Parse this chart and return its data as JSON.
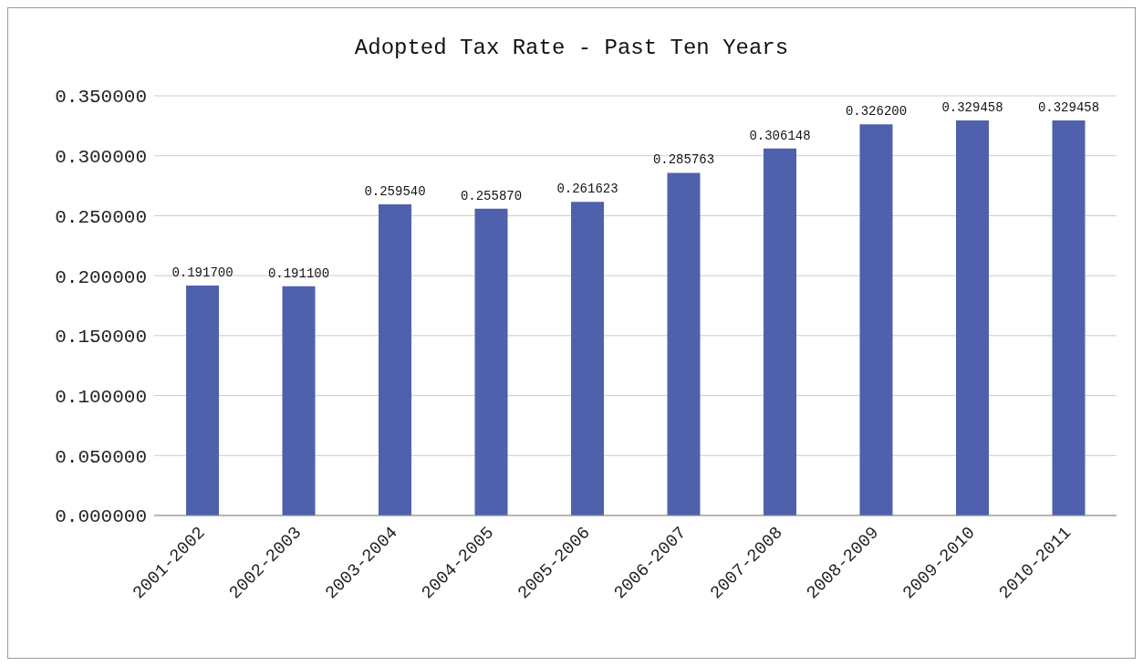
{
  "chart_data": {
    "type": "bar",
    "title": "Adopted Tax Rate - Past Ten Years",
    "categories": [
      "2001-2002",
      "2002-2003",
      "2003-2004",
      "2004-2005",
      "2005-2006",
      "2006-2007",
      "2007-2008",
      "2008-2009",
      "2009-2010",
      "2010-2011"
    ],
    "values": [
      0.1917,
      0.1911,
      0.25954,
      0.25587,
      0.261623,
      0.285763,
      0.306148,
      0.3262,
      0.329458,
      0.329458
    ],
    "value_labels": [
      "0.191700",
      "0.191100",
      "0.259540",
      "0.255870",
      "0.261623",
      "0.285763",
      "0.306148",
      "0.326200",
      "0.329458",
      "0.329458"
    ],
    "color": "#4f61ad",
    "ylim": [
      0,
      0.35
    ],
    "yticks": [
      {
        "value": 0,
        "label": "0.000000"
      },
      {
        "value": 0.05,
        "label": "0.050000"
      },
      {
        "value": 0.1,
        "label": "0.100000"
      },
      {
        "value": 0.15,
        "label": "0.150000"
      },
      {
        "value": 0.2,
        "label": "0.200000"
      },
      {
        "value": 0.25,
        "label": "0.250000"
      },
      {
        "value": 0.3,
        "label": "0.300000"
      },
      {
        "value": 0.35,
        "label": "0.350000"
      }
    ],
    "grid": "y"
  }
}
